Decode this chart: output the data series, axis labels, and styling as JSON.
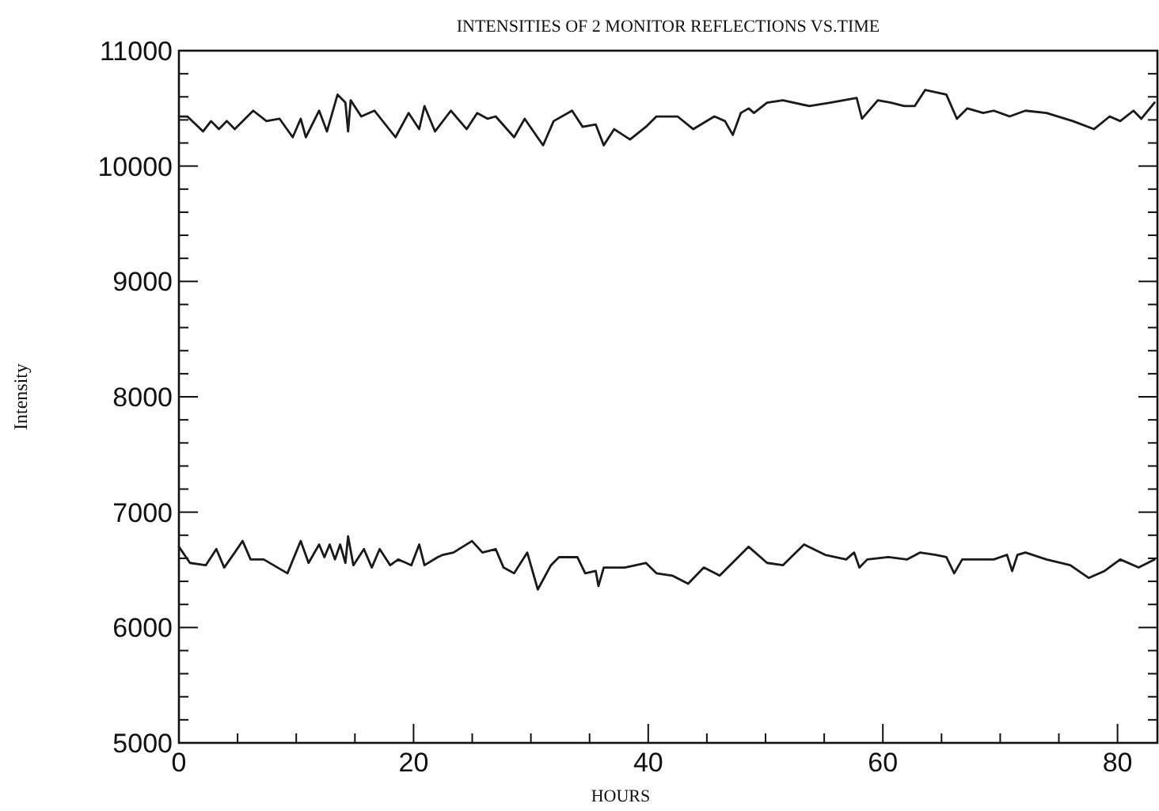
{
  "chart_data": {
    "type": "line",
    "title": "INTENSITIES OF 2 MONITOR REFLECTIONS VS.TIME",
    "xlabel": "HOURS",
    "ylabel": "Intensity",
    "xlim": [
      0,
      83.4
    ],
    "ylim": [
      5000,
      11000
    ],
    "xticks": [
      0,
      {
        "value": 5,
        "label": null
      },
      {
        "value": 10,
        "label": null
      },
      {
        "value": 15,
        "label": null
      },
      20,
      {
        "value": 25,
        "label": null
      },
      {
        "value": 30,
        "label": null
      },
      {
        "value": 35,
        "label": null
      },
      40,
      {
        "value": 45,
        "label": null
      },
      {
        "value": 50,
        "label": null
      },
      {
        "value": 55,
        "label": null
      },
      60,
      {
        "value": 65,
        "label": null
      },
      {
        "value": 70,
        "label": null
      },
      {
        "value": 75,
        "label": null
      },
      80
    ],
    "yticks": [
      5000,
      {
        "value": 5200,
        "label": null
      },
      {
        "value": 5400,
        "label": null
      },
      {
        "value": 5600,
        "label": null
      },
      {
        "value": 5800,
        "label": null
      },
      6000,
      {
        "value": 6200,
        "label": null
      },
      {
        "value": 6400,
        "label": null
      },
      {
        "value": 6600,
        "label": null
      },
      {
        "value": 6800,
        "label": null
      },
      7000,
      {
        "value": 7200,
        "label": null
      },
      {
        "value": 7400,
        "label": null
      },
      {
        "value": 7600,
        "label": null
      },
      {
        "value": 7800,
        "label": null
      },
      8000,
      {
        "value": 8200,
        "label": null
      },
      {
        "value": 8400,
        "label": null
      },
      {
        "value": 8600,
        "label": null
      },
      {
        "value": 8800,
        "label": null
      },
      9000,
      {
        "value": 9200,
        "label": null
      },
      {
        "value": 9400,
        "label": null
      },
      {
        "value": 9600,
        "label": null
      },
      {
        "value": 9800,
        "label": null
      },
      10000,
      {
        "value": 10200,
        "label": null
      },
      {
        "value": 10400,
        "label": null
      },
      {
        "value": 10600,
        "label": null
      },
      {
        "value": 10800,
        "label": null
      },
      11000
    ],
    "grid": false,
    "marker": "none",
    "line_style": "solid",
    "series": [
      {
        "color": "#1a1a1a",
        "x": [
          0,
          0.72,
          2.06,
          2.74,
          3.41,
          4.09,
          4.76,
          6.33,
          7.46,
          8.58,
          9.7,
          10.38,
          10.82,
          11.95,
          12.62,
          13.52,
          14.19,
          14.42,
          14.64,
          15.54,
          16.66,
          18.46,
          19.58,
          20.48,
          20.93,
          21.83,
          23.18,
          24.53,
          25.42,
          26.32,
          27.0,
          28.57,
          29.47,
          31.04,
          31.94,
          33.51,
          34.41,
          35.53,
          36.21,
          37.1,
          38.45,
          39.8,
          40.7,
          42.5,
          43.84,
          45.64,
          46.54,
          47.21,
          47.89,
          48.56,
          49.01,
          50.13,
          51.48,
          53.73,
          55.52,
          57.77,
          58.22,
          59.57,
          60.69,
          61.81,
          62.71,
          63.61,
          65.41,
          66.31,
          67.2,
          68.55,
          69.45,
          70.8,
          72.15,
          73.94,
          76.19,
          77.99,
          79.33,
          80.23,
          81.36,
          82.03,
          83.15
        ],
        "values": [
          10430,
          10430,
          10300,
          10390,
          10320,
          10390,
          10320,
          10480,
          10390,
          10410,
          10250,
          10410,
          10250,
          10480,
          10300,
          10620,
          10550,
          10300,
          10570,
          10430,
          10480,
          10250,
          10460,
          10320,
          10520,
          10300,
          10480,
          10320,
          10460,
          10410,
          10430,
          10250,
          10410,
          10180,
          10390,
          10480,
          10340,
          10360,
          10180,
          10320,
          10230,
          10340,
          10430,
          10430,
          10320,
          10430,
          10390,
          10270,
          10460,
          10500,
          10460,
          10550,
          10570,
          10520,
          10550,
          10590,
          10410,
          10570,
          10550,
          10520,
          10520,
          10660,
          10620,
          10410,
          10500,
          10460,
          10480,
          10430,
          10480,
          10460,
          10390,
          10320,
          10430,
          10390,
          10480,
          10410,
          10550
        ]
      },
      {
        "color": "#1a1a1a",
        "x": [
          0,
          0.94,
          2.29,
          3.19,
          3.86,
          4.76,
          5.43,
          6.11,
          7.23,
          9.25,
          10.38,
          11.05,
          11.95,
          12.4,
          12.85,
          13.3,
          13.74,
          14.19,
          14.42,
          14.87,
          15.77,
          16.44,
          17.11,
          18.01,
          18.69,
          19.81,
          20.48,
          20.93,
          22.06,
          22.5,
          23.4,
          24.98,
          25.87,
          27.0,
          27.67,
          28.57,
          29.69,
          30.59,
          31.71,
          32.39,
          33.96,
          34.63,
          35.53,
          35.76,
          36.21,
          38.0,
          39.8,
          40.7,
          42.05,
          43.4,
          44.74,
          46.09,
          48.56,
          50.13,
          51.48,
          53.28,
          55.08,
          56.87,
          57.55,
          58.0,
          58.67,
          60.47,
          62.04,
          63.16,
          64.51,
          65.41,
          66.08,
          66.76,
          69.45,
          70.58,
          71.02,
          71.47,
          72.15,
          73.94,
          75.97,
          77.54,
          78.89,
          80.23,
          81.8,
          83.15
        ],
        "values": [
          6700,
          6560,
          6540,
          6680,
          6520,
          6650,
          6750,
          6590,
          6590,
          6470,
          6750,
          6560,
          6720,
          6610,
          6720,
          6590,
          6720,
          6560,
          6790,
          6540,
          6680,
          6520,
          6680,
          6540,
          6590,
          6540,
          6720,
          6540,
          6610,
          6630,
          6650,
          6750,
          6650,
          6680,
          6520,
          6470,
          6650,
          6330,
          6540,
          6610,
          6610,
          6470,
          6490,
          6360,
          6520,
          6520,
          6560,
          6470,
          6450,
          6380,
          6520,
          6450,
          6700,
          6560,
          6540,
          6720,
          6630,
          6590,
          6650,
          6520,
          6590,
          6610,
          6590,
          6650,
          6630,
          6610,
          6470,
          6590,
          6590,
          6630,
          6490,
          6630,
          6650,
          6590,
          6540,
          6430,
          6490,
          6590,
          6520,
          6590
        ]
      }
    ]
  }
}
